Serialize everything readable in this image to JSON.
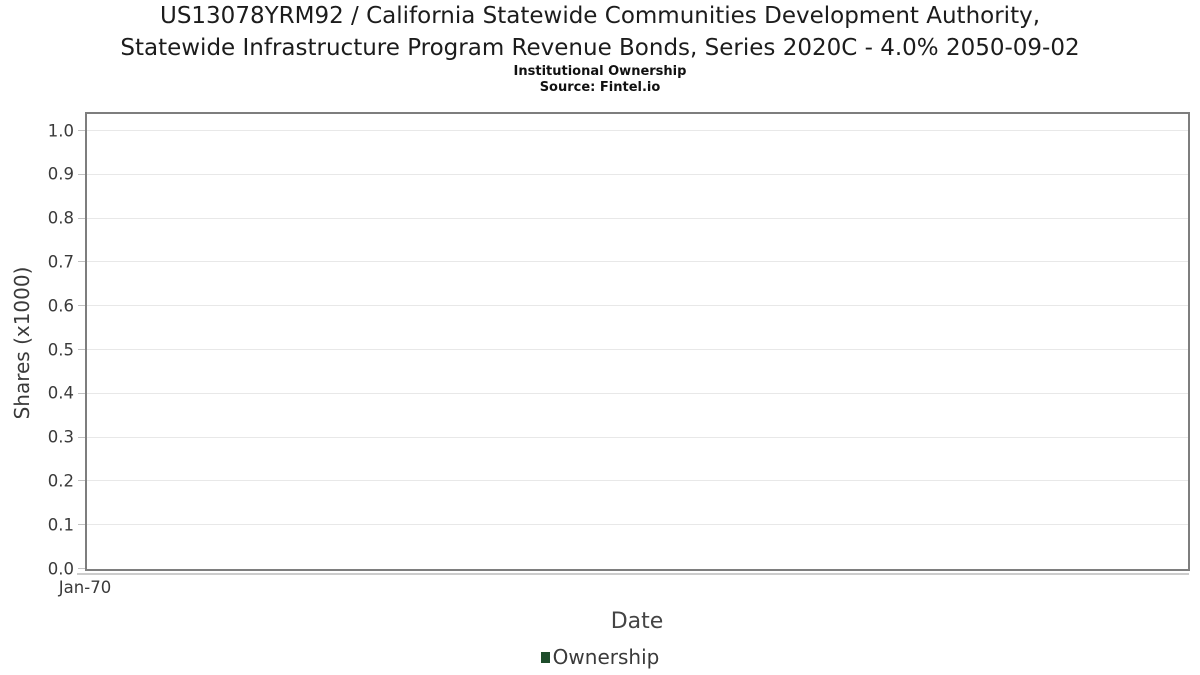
{
  "header": {
    "title_line1": "US13078YRM92 / California Statewide Communities Development Authority,",
    "title_line2": "Statewide Infrastructure Program Revenue Bonds, Series 2020C - 4.0% 2050-09-02",
    "subtitle": "Institutional Ownership",
    "source": "Source: Fintel.io"
  },
  "chart_data": {
    "type": "line",
    "title": "Institutional Ownership",
    "subtitle": "Source: Fintel.io",
    "xlabel": "Date",
    "ylabel": "Shares (x1000)",
    "x_ticks": [
      "Jan-70"
    ],
    "y_ticks": [
      "0.0",
      "0.1",
      "0.2",
      "0.3",
      "0.4",
      "0.5",
      "0.6",
      "0.7",
      "0.8",
      "0.9",
      "1.0"
    ],
    "ylim": [
      0.0,
      1.04
    ],
    "grid": "horizontal",
    "legend_position": "bottom-center",
    "series": [
      {
        "name": "Ownership",
        "color": "#1e4d2b",
        "x": [],
        "values": []
      }
    ]
  },
  "colors": {
    "plot_border": "#7e7e7e",
    "gridline": "#e8e8e8",
    "tick_mark": "#c2c2c2",
    "tick_label": "#3a3a3a",
    "axis_title": "#444444",
    "title_text": "#1c1c1c",
    "legend_marker": "#1e4d2b",
    "background": "#ffffff"
  }
}
